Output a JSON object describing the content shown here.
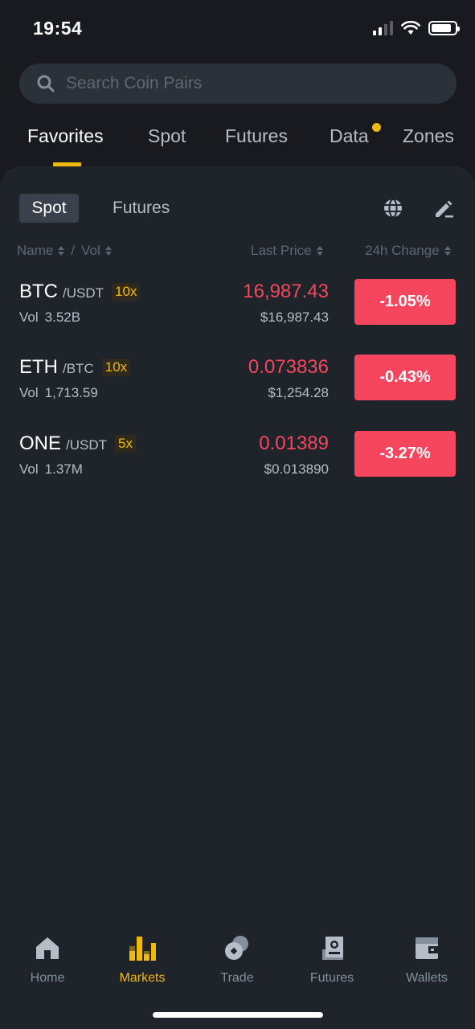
{
  "status": {
    "time": "19:54"
  },
  "search": {
    "placeholder": "Search Coin Pairs"
  },
  "top_tabs": [
    {
      "label": "Favorites",
      "active": true
    },
    {
      "label": "Spot"
    },
    {
      "label": "Futures"
    },
    {
      "label": "Data",
      "badge": "dot"
    },
    {
      "label": "Zones"
    }
  ],
  "sub_tabs": [
    {
      "label": "Spot",
      "active": true
    },
    {
      "label": "Futures"
    }
  ],
  "toolbar_icons": [
    "globe-icon",
    "edit-icon"
  ],
  "columns": {
    "name": "Name",
    "separator": "/",
    "vol": "Vol",
    "last_price": "Last Price",
    "change": "24h Change"
  },
  "rows": [
    {
      "base": "BTC",
      "quote": "/USDT",
      "leverage": "10x",
      "vol_label": "Vol",
      "vol": "3.52B",
      "price": "16,987.43",
      "fiat": "$16,987.43",
      "change": "-1.05%"
    },
    {
      "base": "ETH",
      "quote": "/BTC",
      "leverage": "10x",
      "vol_label": "Vol",
      "vol": "1,713.59",
      "price": "0.073836",
      "fiat": "$1,254.28",
      "change": "-0.43%"
    },
    {
      "base": "ONE",
      "quote": "/USDT",
      "leverage": "5x",
      "vol_label": "Vol",
      "vol": "1.37M",
      "price": "0.01389",
      "fiat": "$0.013890",
      "change": "-3.27%"
    }
  ],
  "bottom_nav": [
    {
      "label": "Home",
      "icon": "home-icon"
    },
    {
      "label": "Markets",
      "icon": "markets-icon",
      "active": true
    },
    {
      "label": "Trade",
      "icon": "trade-icon"
    },
    {
      "label": "Futures",
      "icon": "futures-icon"
    },
    {
      "label": "Wallets",
      "icon": "wallet-icon"
    }
  ],
  "colors": {
    "background": "#181a20",
    "panel": "#1f242b",
    "accent": "#f0b90b",
    "negative": "#f6465d",
    "muted": "#848e9c"
  }
}
